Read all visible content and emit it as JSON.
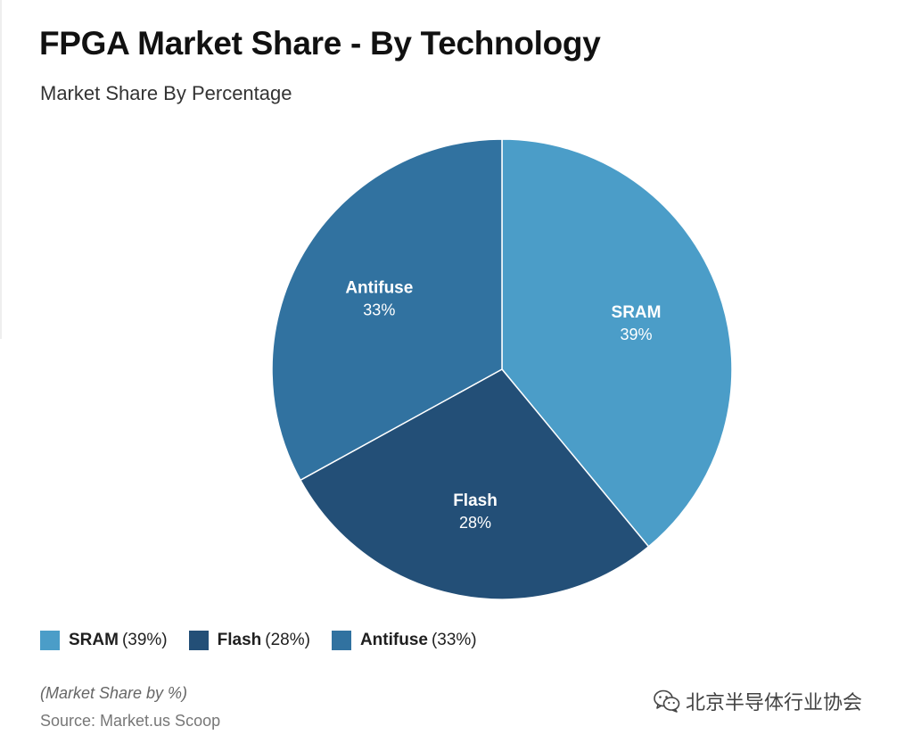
{
  "chart_data": {
    "type": "pie",
    "title": "FPGA Market Share - By Technology",
    "subtitle": "Market Share By Percentage",
    "slices": [
      {
        "name": "SRAM",
        "value": 39,
        "label": "39%",
        "legend_value": "(39%)",
        "color": "#4b9dc8"
      },
      {
        "name": "Flash",
        "value": 28,
        "label": "28%",
        "legend_value": "(28%)",
        "color": "#234f77"
      },
      {
        "name": "Antifuse",
        "value": 33,
        "label": "33%",
        "legend_value": "(33%)",
        "color": "#3172a0"
      }
    ],
    "start_angle": "12 o'clock",
    "direction": "clockwise",
    "legend_position": "bottom-left",
    "note": "(Market Share by %)",
    "source": "Source: Market.us Scoop"
  },
  "watermark": {
    "text": "北京半导体行业协会",
    "icon": "wechat-icon"
  }
}
